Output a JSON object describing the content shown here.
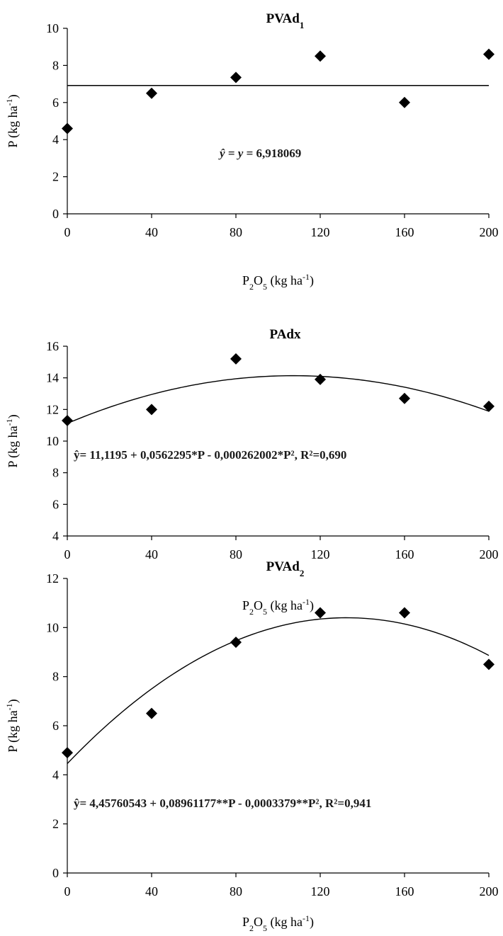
{
  "chart_data": [
    {
      "type": "scatter",
      "title": "PVAd",
      "title_sub": "1",
      "ylabel": "P (kg ha-1)",
      "xlabel": "P2O5 (kg ha-1)",
      "x": [
        0,
        40,
        80,
        120,
        160,
        200
      ],
      "series": [
        {
          "values": [
            4.6,
            6.5,
            7.35,
            8.5,
            6.0,
            8.6
          ]
        }
      ],
      "xlim": [
        0,
        200
      ],
      "ylim": [
        0,
        10
      ],
      "xticks": [
        0,
        40,
        80,
        120,
        160,
        200
      ],
      "yticks": [
        0,
        2,
        4,
        6,
        8,
        10
      ],
      "fit": {
        "kind": "constant",
        "value": 6.918069
      },
      "equation": {
        "lhs": "ŷ = y =",
        "rhs": "6,918069"
      },
      "grid": false,
      "legend": "none"
    },
    {
      "type": "scatter",
      "title": "PAdx",
      "title_sub": "",
      "ylabel": "P (kg ha-1)",
      "xlabel": "P2O5 (kg ha-1)",
      "x": [
        0,
        40,
        80,
        120,
        160,
        200
      ],
      "series": [
        {
          "values": [
            11.3,
            12.0,
            15.2,
            13.9,
            12.7,
            12.2
          ]
        }
      ],
      "xlim": [
        0,
        200
      ],
      "ylim": [
        4,
        16
      ],
      "xticks": [
        0,
        40,
        80,
        120,
        160,
        200
      ],
      "yticks": [
        4,
        6,
        8,
        10,
        12,
        14,
        16
      ],
      "fit": {
        "kind": "quadratic",
        "a": 11.1195,
        "b": 0.0562295,
        "c": -0.000262002
      },
      "equation": {
        "text": "ŷ= 11,1195 + 0,0562295*P - 0,000262002*P², R²=0,690"
      },
      "grid": false,
      "legend": "none"
    },
    {
      "type": "scatter",
      "title": "PVAd",
      "title_sub": "2",
      "ylabel": "P (kg ha-1)",
      "xlabel": "P2O5 (kg ha-1)",
      "x": [
        0,
        40,
        80,
        120,
        160,
        200
      ],
      "series": [
        {
          "values": [
            4.9,
            6.5,
            9.4,
            10.6,
            10.6,
            8.5
          ]
        }
      ],
      "xlim": [
        0,
        200
      ],
      "ylim": [
        0,
        12
      ],
      "xticks": [
        0,
        40,
        80,
        120,
        160,
        200
      ],
      "yticks": [
        0,
        2,
        4,
        6,
        8,
        10,
        12
      ],
      "fit": {
        "kind": "quadratic",
        "a": 4.45760543,
        "b": 0.08961177,
        "c": -0.0003379
      },
      "equation": {
        "text": "ŷ= 4,45760543 + 0,08961177**P - 0,0003379**P², R²=0,941"
      },
      "grid": false,
      "legend": "none"
    }
  ]
}
